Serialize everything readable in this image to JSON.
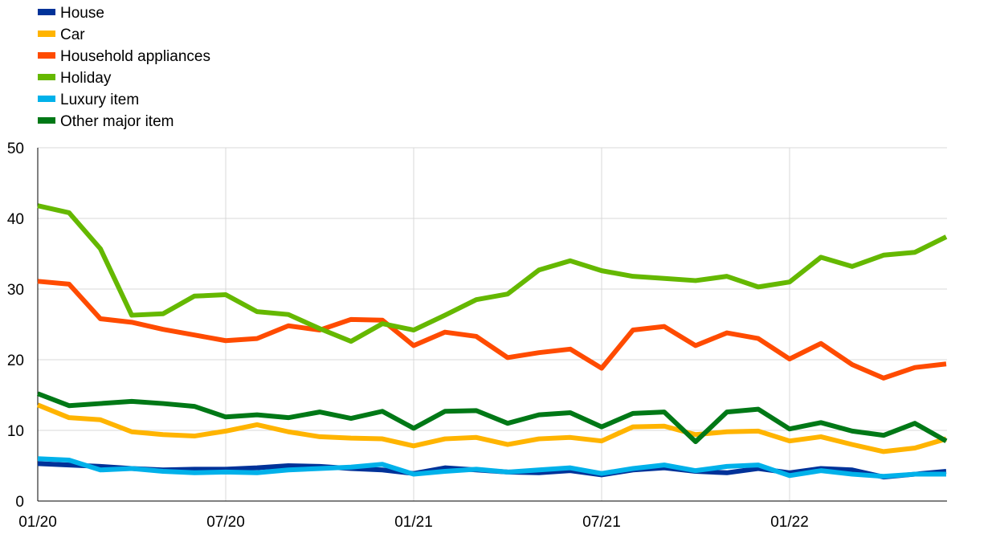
{
  "chart_data": {
    "type": "line",
    "title": "",
    "xlabel": "",
    "ylabel": "",
    "ylim": [
      0,
      50
    ],
    "yticks": [
      0,
      10,
      20,
      30,
      40,
      50
    ],
    "xtick_labels": [
      "01/20",
      "07/20",
      "01/21",
      "07/21",
      "01/22"
    ],
    "xtick_indices": [
      0,
      6,
      12,
      18,
      24
    ],
    "n_points": 30,
    "grid": true,
    "legend_position": "top-left",
    "series": [
      {
        "name": "House",
        "color": "#003299",
        "values": [
          5.3,
          5.1,
          4.9,
          4.6,
          4.4,
          4.5,
          4.5,
          4.7,
          5.0,
          4.9,
          4.6,
          4.4,
          3.9,
          4.7,
          4.4,
          4.1,
          4.0,
          4.3,
          3.7,
          4.4,
          4.7,
          4.2,
          4.0,
          4.6,
          4.0,
          4.6,
          4.4,
          3.4,
          3.8,
          4.2
        ]
      },
      {
        "name": "Car",
        "color": "#FFB400",
        "values": [
          13.6,
          11.8,
          11.5,
          9.8,
          9.4,
          9.2,
          9.9,
          10.8,
          9.8,
          9.1,
          8.9,
          8.8,
          7.8,
          8.8,
          9.0,
          8.0,
          8.8,
          9.0,
          8.5,
          10.5,
          10.6,
          9.4,
          9.8,
          9.9,
          8.5,
          9.1,
          8.0,
          7.0,
          7.5,
          8.8
        ]
      },
      {
        "name": "Household appliances",
        "color": "#FF4B00",
        "values": [
          31.1,
          30.7,
          25.8,
          25.3,
          24.3,
          23.5,
          22.7,
          23.0,
          24.8,
          24.2,
          25.7,
          25.6,
          22.0,
          23.9,
          23.3,
          20.3,
          21.0,
          21.5,
          18.8,
          24.2,
          24.7,
          22.0,
          23.8,
          23.0,
          20.1,
          22.3,
          19.3,
          17.4,
          18.9,
          19.4
        ]
      },
      {
        "name": "Holiday",
        "color": "#65B800",
        "values": [
          41.8,
          40.8,
          35.7,
          26.3,
          26.5,
          29.0,
          29.2,
          26.8,
          26.4,
          24.4,
          22.6,
          25.1,
          24.2,
          26.3,
          28.5,
          29.3,
          32.7,
          34.0,
          32.6,
          31.8,
          31.5,
          31.2,
          31.8,
          30.3,
          31.0,
          34.5,
          33.2,
          34.8,
          35.2,
          37.4
        ]
      },
      {
        "name": "Luxury item",
        "color": "#00B1EA",
        "values": [
          6.0,
          5.8,
          4.4,
          4.6,
          4.2,
          4.0,
          4.1,
          4.0,
          4.4,
          4.6,
          4.8,
          5.2,
          3.8,
          4.2,
          4.5,
          4.1,
          4.4,
          4.7,
          3.9,
          4.6,
          5.1,
          4.3,
          4.9,
          5.1,
          3.6,
          4.3,
          3.8,
          3.5,
          3.8,
          3.8
        ]
      },
      {
        "name": "Other major item",
        "color": "#007816",
        "values": [
          15.2,
          13.5,
          13.8,
          14.1,
          13.8,
          13.4,
          11.9,
          12.2,
          11.8,
          12.6,
          11.7,
          12.7,
          10.3,
          12.7,
          12.8,
          11.0,
          12.2,
          12.5,
          10.5,
          12.4,
          12.6,
          8.4,
          12.6,
          13.0,
          10.2,
          11.1,
          9.9,
          9.3,
          11.0,
          8.5
        ]
      }
    ]
  }
}
